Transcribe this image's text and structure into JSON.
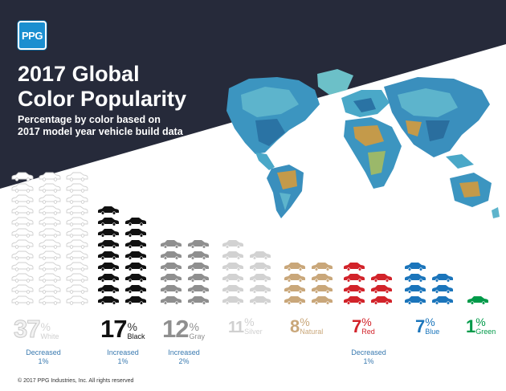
{
  "brand": {
    "logo_text": "PPG"
  },
  "header": {
    "title_line1": "2017 Global",
    "title_line2": "Color Popularity",
    "subtitle_line1": "Percentage by color based on",
    "subtitle_line2": "2017 model year vehicle build data"
  },
  "chart_data": {
    "type": "bar",
    "title": "2017 Global Color Popularity",
    "subtitle": "Percentage by color based on 2017 model year vehicle build data",
    "categories": [
      "White",
      "Black",
      "Gray",
      "Silver",
      "Natural",
      "Red",
      "Blue",
      "Green"
    ],
    "values": [
      37,
      17,
      12,
      11,
      8,
      7,
      7,
      1
    ],
    "colors": [
      "#e6e6e6",
      "#111111",
      "#8f8f8f",
      "#d2d2d2",
      "#c9a77a",
      "#d2232a",
      "#1b75bb",
      "#009a49"
    ],
    "label_colors": [
      "#e3e3e3",
      "#111111",
      "#8f8f8f",
      "#d0d0d0",
      "#c9a77a",
      "#d2232a",
      "#1b75bb",
      "#009a49"
    ],
    "unit": "%",
    "encoding": "stacked car icons",
    "icon_name": "car-icon"
  },
  "labels": [
    {
      "num": "37",
      "sign": "%",
      "name": "White"
    },
    {
      "num": "17",
      "sign": "%",
      "name": "Black"
    },
    {
      "num": "12",
      "sign": "%",
      "name": "Gray"
    },
    {
      "num": "11",
      "sign": "%",
      "name": "Silver"
    },
    {
      "num": "8",
      "sign": "%",
      "name": "Natural"
    },
    {
      "num": "7",
      "sign": "%",
      "name": "Red"
    },
    {
      "num": "7",
      "sign": "%",
      "name": "Blue"
    },
    {
      "num": "1",
      "sign": "%",
      "name": "Green"
    }
  ],
  "notes": [
    {
      "line1": "Decreased",
      "line2": "1%"
    },
    {
      "line1": "Increased",
      "line2": "1%"
    },
    {
      "line1": "Increased",
      "line2": "2%"
    },
    {
      "line1": "Decreased",
      "line2": "1%"
    }
  ],
  "map": {
    "icon_name": "world-map-icon",
    "colors": [
      "#2f86b8",
      "#4aa8c8",
      "#6cc0c8",
      "#2a6e9e",
      "#c49a4a",
      "#9bb86a"
    ]
  },
  "colors": {
    "banner": "#262a3a",
    "accent": "#1b8fd0"
  },
  "footer": {
    "copyright": "© 2017 PPG Industries, Inc. All rights reserved"
  }
}
